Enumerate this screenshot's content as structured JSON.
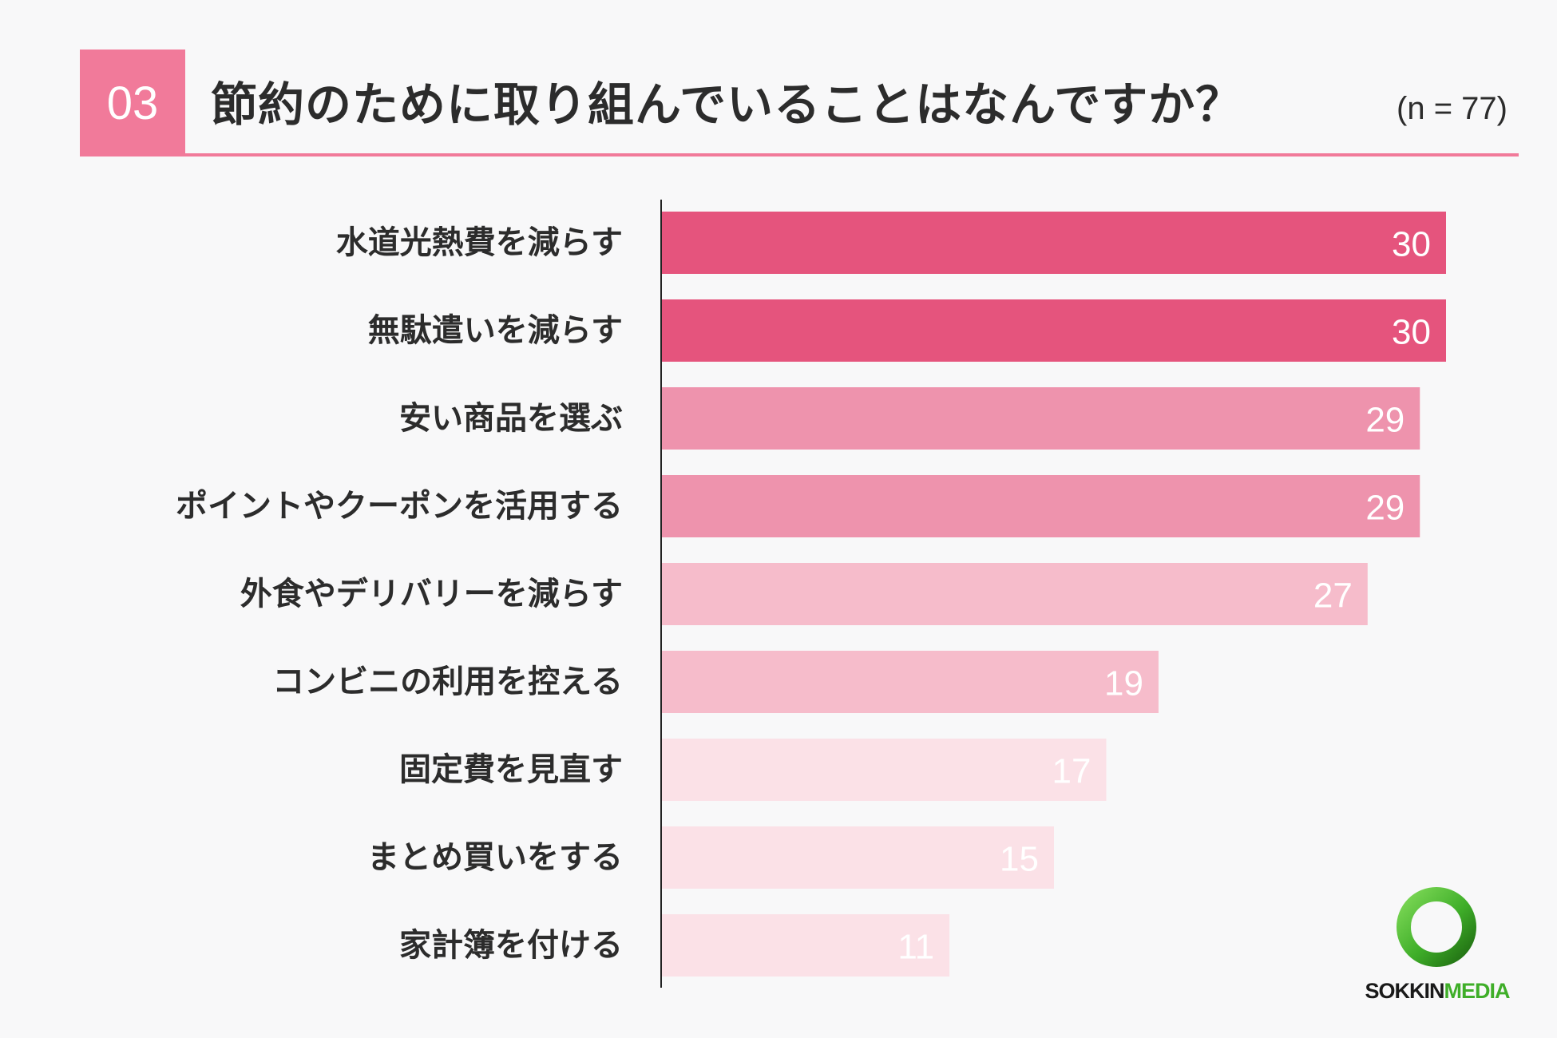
{
  "header": {
    "number": "03",
    "title": "節約のために取り組んでいることはなんですか？",
    "sample": "(n = 77)"
  },
  "chart_data": {
    "type": "bar",
    "orientation": "horizontal",
    "categories": [
      "水道光熱費を減らす",
      "無駄遣いを減らす",
      "安い商品を選ぶ",
      "ポイントやクーポンを活用する",
      "外食やデリバリーを減らす",
      "コンビニの利用を控える",
      "固定費を見直す",
      "まとめ買いをする",
      "家計簿を付ける"
    ],
    "values": [
      30,
      30,
      29,
      29,
      27,
      19,
      17,
      15,
      11
    ],
    "bar_colors": [
      "#e5547d",
      "#e5547d",
      "#ee93ad",
      "#ee93ad",
      "#f6bccb",
      "#f6bccb",
      "#fbe1e7",
      "#fbe1e7",
      "#fbe1e7"
    ],
    "value_label_color": "#ffffff",
    "xlim": [
      0,
      30
    ],
    "grid": false,
    "data_labels": true
  },
  "logo": {
    "text_a": "SOKKIN",
    "text_b": "MEDIA",
    "ring_color": "#3fae29",
    "ring_dark_color": "#1f6b12"
  }
}
